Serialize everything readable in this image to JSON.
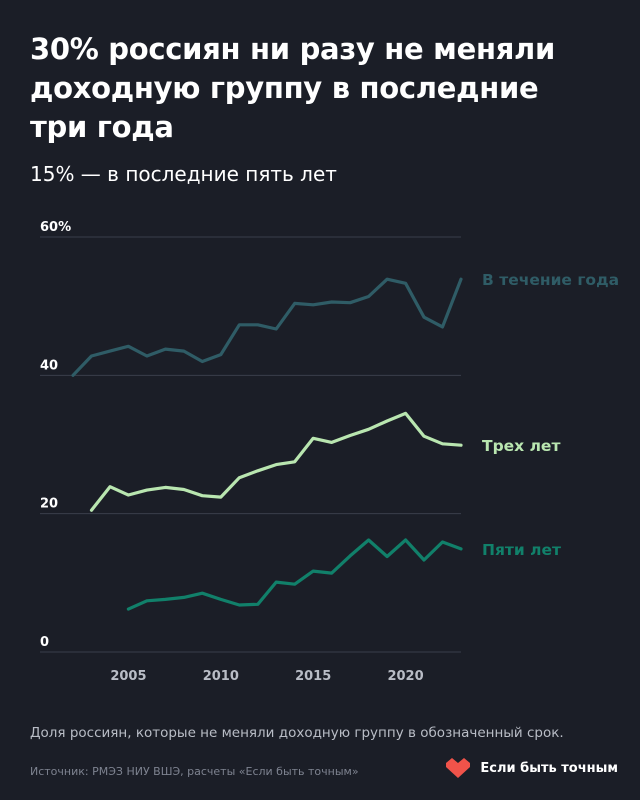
{
  "header": {
    "title": "30% россиян ни разу не меняли доходную группу в последние три года",
    "subtitle": "15% — в последние пять лет"
  },
  "footer": {
    "caption": "Доля россиян, которые не меняли доходную группу в обозначенный срок.",
    "source": "Источник: РМЭЗ НИУ ВШЭ, расчеты «Если быть точным»",
    "brand": "Если быть точным"
  },
  "colors": {
    "background": "#1b1e27",
    "year": "#2f5c66",
    "three": "#b9e6b0",
    "five": "#11806a",
    "brand": "#f0534a"
  },
  "chart_data": {
    "type": "line",
    "x": [
      2002,
      2003,
      2004,
      2005,
      2006,
      2007,
      2008,
      2009,
      2010,
      2011,
      2012,
      2013,
      2014,
      2015,
      2016,
      2017,
      2018,
      2019,
      2020,
      2021,
      2022,
      2023
    ],
    "y_tick_labels": [
      "0",
      "20",
      "40",
      "60%"
    ],
    "y_ticks": [
      0,
      20,
      40,
      60
    ],
    "x_ticks": [
      2005,
      2010,
      2015,
      2020
    ],
    "xlim": [
      2002,
      2023
    ],
    "ylim": [
      0,
      60
    ],
    "series": [
      {
        "name": "В течение года",
        "color": "#2f5c66",
        "values": [
          40.0,
          42.8,
          43.5,
          44.2,
          42.8,
          43.8,
          43.5,
          42.0,
          43.0,
          47.3,
          47.3,
          46.7,
          50.4,
          50.2,
          50.6,
          50.5,
          51.4,
          53.9,
          53.3,
          48.4,
          47.0,
          53.9
        ]
      },
      {
        "name": "Трех лет",
        "color": "#b9e6b0",
        "values": [
          null,
          20.5,
          23.9,
          22.7,
          23.4,
          23.8,
          23.5,
          22.6,
          22.4,
          25.2,
          26.2,
          27.1,
          27.5,
          30.9,
          30.3,
          31.3,
          32.2,
          33.4,
          34.5,
          31.2,
          30.1,
          29.9
        ]
      },
      {
        "name": "Пяти лет",
        "color": "#11806a",
        "values": [
          null,
          null,
          null,
          6.2,
          7.4,
          7.6,
          7.9,
          8.5,
          7.6,
          6.8,
          6.9,
          10.1,
          9.8,
          11.7,
          11.4,
          13.9,
          16.2,
          13.8,
          16.2,
          13.3,
          15.9,
          14.9
        ]
      }
    ]
  }
}
